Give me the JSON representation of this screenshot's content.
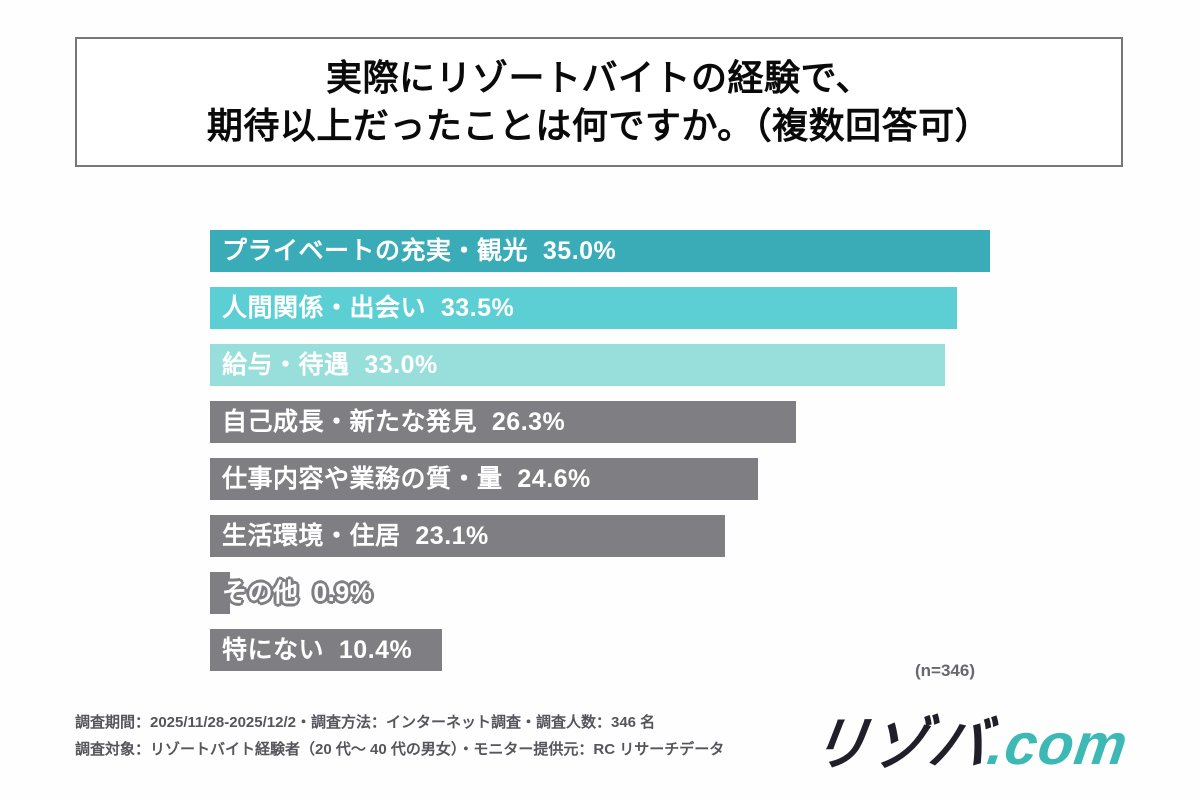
{
  "title": {
    "line1": "実際にリゾートバイトの経験で、",
    "line2": "期待以上だったことは何ですか。（複数回答可）"
  },
  "chart_data": {
    "type": "bar",
    "orientation": "horizontal",
    "title": "実際にリゾートバイトの経験で、期待以上だったことは何ですか。（複数回答可）",
    "unit": "%",
    "xlim": [
      0,
      35
    ],
    "grid": false,
    "legend": false,
    "n_label": "(n=346)",
    "bars": [
      {
        "label": "プライベートの充実・観光",
        "value": 35.0,
        "color": "#3AACB8"
      },
      {
        "label": "人間関係・出会い",
        "value": 33.5,
        "color": "#5CCFD4"
      },
      {
        "label": "給与・待遇",
        "value": 33.0,
        "color": "#98DFDC"
      },
      {
        "label": "自己成長・新たな発見",
        "value": 26.3,
        "color": "#7F7E82"
      },
      {
        "label": "仕事内容や業務の質・量",
        "value": 24.6,
        "color": "#7F7E82"
      },
      {
        "label": "生活環境・住居",
        "value": 23.1,
        "color": "#7F7E82"
      },
      {
        "label": "その他",
        "value": 0.9,
        "color": "#7F7E82"
      },
      {
        "label": "特にない",
        "value": 10.4,
        "color": "#7F7E82"
      }
    ]
  },
  "footnote": {
    "line1": "調査期間：2025/11/28-2025/12/2・調査方法：インターネット調査・調査人数：346 名",
    "line2": "調査対象：リゾートバイト経験者（20 代～ 40 代の男女）・モニター提供元：RC リサーチデータ"
  },
  "logo": {
    "part_dark": "リゾバ",
    "part_teal": ".com",
    "color_dark": "#201F29",
    "color_teal": "#3CB9B5"
  }
}
